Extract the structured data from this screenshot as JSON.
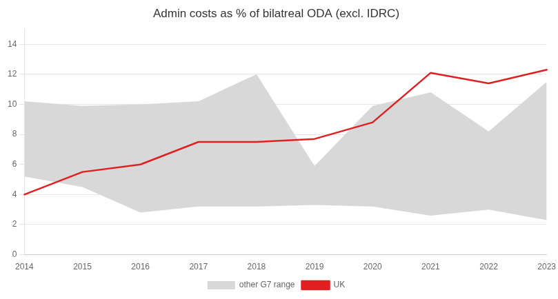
{
  "chart_data": {
    "type": "line",
    "title": "Admin costs as % of bilatreal ODA (excl. IDRC)",
    "categories": [
      "2014",
      "2015",
      "2016",
      "2017",
      "2018",
      "2019",
      "2020",
      "2021",
      "2022",
      "2023"
    ],
    "series": [
      {
        "name": "other G7 range",
        "type": "area",
        "color": "#d8d8d8",
        "lower": [
          5.2,
          4.5,
          2.8,
          3.2,
          3.2,
          3.3,
          3.2,
          2.6,
          3.0,
          2.3
        ],
        "upper": [
          10.2,
          9.9,
          10.0,
          10.2,
          12.0,
          5.9,
          9.9,
          10.8,
          8.2,
          11.5
        ]
      },
      {
        "name": "UK",
        "type": "line",
        "color": "#e02020",
        "values": [
          4.0,
          5.5,
          6.0,
          7.5,
          7.5,
          7.7,
          8.8,
          12.1,
          11.4,
          12.3
        ]
      }
    ],
    "ylim": [
      0,
      15
    ],
    "yticks": [
      0,
      2,
      4,
      6,
      8,
      10,
      12,
      14
    ],
    "grid": true,
    "legend": "bottom"
  }
}
